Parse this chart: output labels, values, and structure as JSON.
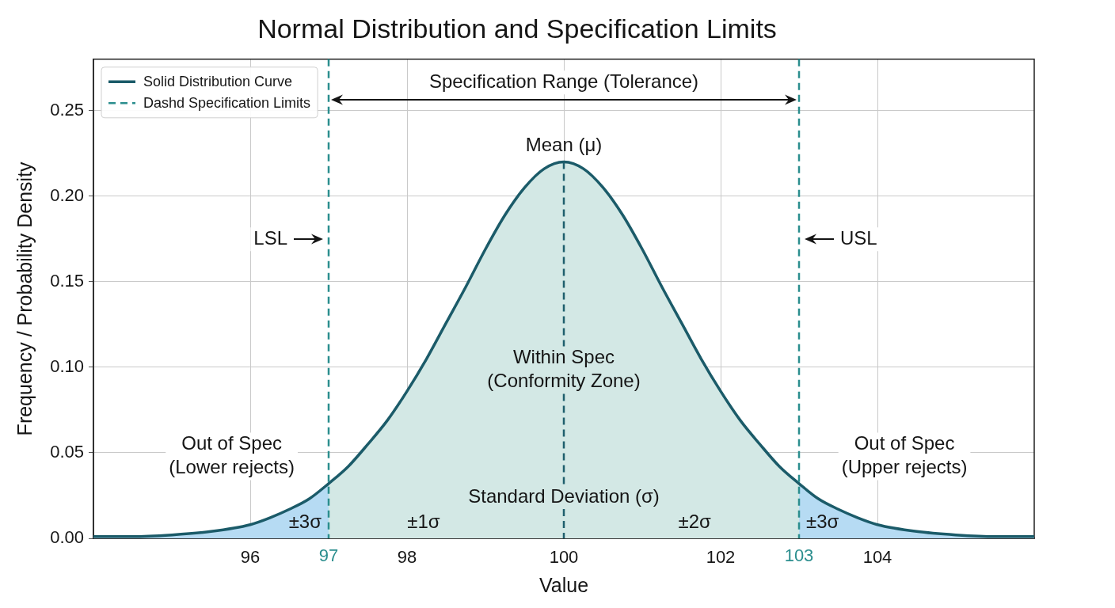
{
  "chart_data": {
    "type": "line",
    "title": "Normal Distribution and Specification Limits",
    "xlabel": "Value",
    "ylabel": "Frequency / Probability Density",
    "xlim": [
      94,
      106
    ],
    "ylim": [
      0,
      0.28
    ],
    "xticks": [
      96,
      98,
      100,
      102,
      104
    ],
    "yticks": [
      {
        "value": 0,
        "label": "0.00"
      },
      {
        "value": 0.05,
        "label": "0.05"
      },
      {
        "value": 0.1,
        "label": "0.10"
      },
      {
        "value": 0.15,
        "label": "0.15"
      },
      {
        "value": 0.2,
        "label": "0.20"
      },
      {
        "value": 0.25,
        "label": "0.25"
      }
    ],
    "grid": true,
    "legend": "top left",
    "series": [
      {
        "name": "Solid Distribution Curve",
        "type": "line",
        "color": "#1b5b69",
        "x": [
          94,
          94.5,
          95,
          95.5,
          96,
          96.25,
          96.5,
          96.75,
          97,
          97.25,
          97.5,
          97.75,
          98,
          98.25,
          98.5,
          98.75,
          99,
          99.25,
          99.5,
          99.75,
          100,
          100.25,
          100.5,
          100.75,
          101,
          101.25,
          101.5,
          101.75,
          102,
          102.25,
          102.5,
          102.75,
          103,
          103.25,
          103.5,
          103.75,
          104,
          104.5,
          105,
          105.5,
          106
        ],
        "values": [
          0.001,
          0.001,
          0.002,
          0.004,
          0.008,
          0.012,
          0.017,
          0.023,
          0.032,
          0.042,
          0.055,
          0.069,
          0.086,
          0.105,
          0.126,
          0.147,
          0.169,
          0.189,
          0.205,
          0.216,
          0.22,
          0.216,
          0.205,
          0.189,
          0.169,
          0.147,
          0.126,
          0.105,
          0.086,
          0.069,
          0.055,
          0.042,
          0.032,
          0.023,
          0.017,
          0.012,
          0.008,
          0.004,
          0.002,
          0.001,
          0.001
        ]
      },
      {
        "type": "area",
        "color": "#b6dbf3",
        "x": [
          94,
          94.5,
          95,
          95.5,
          96,
          96.25,
          96.5,
          96.75,
          97
        ],
        "values": [
          0.001,
          0.001,
          0.002,
          0.004,
          0.008,
          0.012,
          0.017,
          0.023,
          0.032
        ]
      },
      {
        "type": "area",
        "color": "#d3e8e5",
        "x": [
          97,
          97.25,
          97.5,
          97.75,
          98,
          98.25,
          98.5,
          98.75,
          99,
          99.25,
          99.5,
          99.75,
          100,
          100.25,
          100.5,
          100.75,
          101,
          101.25,
          101.5,
          101.75,
          102,
          102.25,
          102.5,
          102.75,
          103
        ],
        "values": [
          0.032,
          0.042,
          0.055,
          0.069,
          0.086,
          0.105,
          0.126,
          0.147,
          0.169,
          0.189,
          0.205,
          0.216,
          0.22,
          0.216,
          0.205,
          0.189,
          0.169,
          0.147,
          0.126,
          0.105,
          0.086,
          0.069,
          0.055,
          0.042,
          0.032
        ]
      },
      {
        "type": "area",
        "color": "#b6dbf3",
        "x": [
          103,
          103.25,
          103.5,
          103.75,
          104,
          104.5,
          105,
          105.5,
          106
        ],
        "values": [
          0.032,
          0.023,
          0.017,
          0.012,
          0.008,
          0.004,
          0.002,
          0.001,
          0.001
        ]
      }
    ],
    "ref_lines": [
      {
        "axis": "x",
        "value": 97,
        "label": "97",
        "color": "#2b8e8e",
        "line_style": "dashed"
      },
      {
        "axis": "x",
        "value": 103,
        "label": "103",
        "color": "#2b8e8e",
        "line_style": "dashed"
      },
      {
        "axis": "x",
        "value": 100,
        "label": "Mean (μ)",
        "color": "#1f5f6d",
        "line_style": "dashed"
      }
    ],
    "annotations": [
      "Dashd Specification Limits",
      "Specification Range (Tolerance)",
      "LSL",
      "USL",
      "Within Spec\n(Conformity Zone)",
      "Out of Spec\n(Lower rejects)",
      "Out of Spec\n(Upper rejects)",
      "Standard Deviation (σ)",
      "±3σ",
      "±1σ",
      "±2σ",
      "±3σ"
    ]
  }
}
